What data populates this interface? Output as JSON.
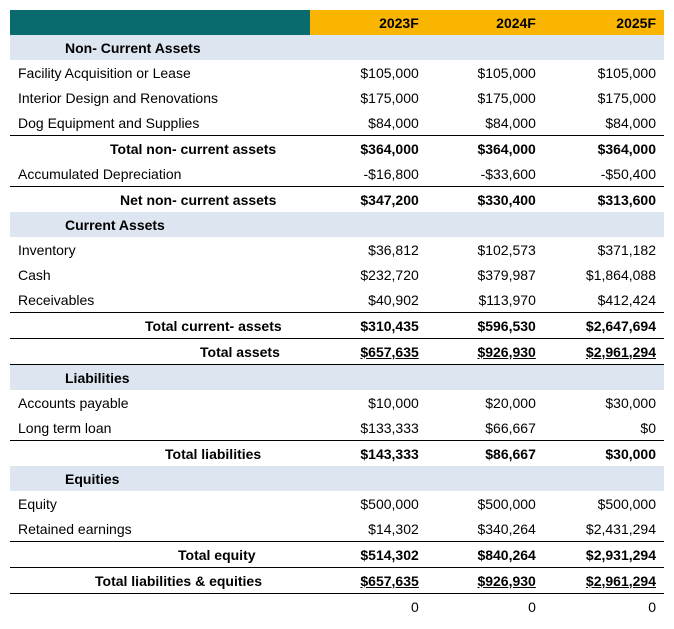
{
  "headers": {
    "y1": "2023F",
    "y2": "2024F",
    "y3": "2025F"
  },
  "sections": {
    "nca": "Non- Current Assets",
    "ca": "Current Assets",
    "liab": "Liabilities",
    "eq": "Equities"
  },
  "rows": {
    "facility": {
      "label": "Facility Acquisition or Lease",
      "v1": "$105,000",
      "v2": "$105,000",
      "v3": "$105,000"
    },
    "interior": {
      "label": "Interior Design and Renovations",
      "v1": "$175,000",
      "v2": "$175,000",
      "v3": "$175,000"
    },
    "dogeq": {
      "label": "Dog Equipment and Supplies",
      "v1": "$84,000",
      "v2": "$84,000",
      "v3": "$84,000"
    },
    "tot_nca": {
      "label": "Total non- current assets",
      "v1": "$364,000",
      "v2": "$364,000",
      "v3": "$364,000"
    },
    "accdep": {
      "label": "Accumulated Depreciation",
      "v1": "-$16,800",
      "v2": "-$33,600",
      "v3": "-$50,400"
    },
    "net_nca": {
      "label": "Net non- current assets",
      "v1": "$347,200",
      "v2": "$330,400",
      "v3": "$313,600"
    },
    "inventory": {
      "label": "Inventory",
      "v1": "$36,812",
      "v2": "$102,573",
      "v3": "$371,182"
    },
    "cash": {
      "label": "Cash",
      "v1": "$232,720",
      "v2": "$379,987",
      "v3": "$1,864,088"
    },
    "recv": {
      "label": "Receivables",
      "v1": "$40,902",
      "v2": "$113,970",
      "v3": "$412,424"
    },
    "tot_ca": {
      "label": "Total current- assets",
      "v1": "$310,435",
      "v2": "$596,530",
      "v3": "$2,647,694"
    },
    "tot_assets": {
      "label": "Total assets",
      "v1": "$657,635",
      "v2": "$926,930",
      "v3": "$2,961,294"
    },
    "ap": {
      "label": "Accounts payable",
      "v1": "$10,000",
      "v2": "$20,000",
      "v3": "$30,000"
    },
    "ltl": {
      "label": "Long term loan",
      "v1": "$133,333",
      "v2": "$66,667",
      "v3": "$0"
    },
    "tot_liab": {
      "label": "Total liabilities",
      "v1": "$143,333",
      "v2": "$86,667",
      "v3": "$30,000"
    },
    "equity": {
      "label": "Equity",
      "v1": "$500,000",
      "v2": "$500,000",
      "v3": "$500,000"
    },
    "re": {
      "label": "Retained earnings",
      "v1": "$14,302",
      "v2": "$340,264",
      "v3": "$2,431,294"
    },
    "tot_eq": {
      "label": "Total equity",
      "v1": "$514,302",
      "v2": "$840,264",
      "v3": "$2,931,294"
    },
    "tot_le": {
      "label": "Total liabilities & equities",
      "v1": "$657,635",
      "v2": "$926,930",
      "v3": "$2,961,294"
    },
    "check": {
      "label": "",
      "v1": "0",
      "v2": "0",
      "v3": "0"
    }
  }
}
